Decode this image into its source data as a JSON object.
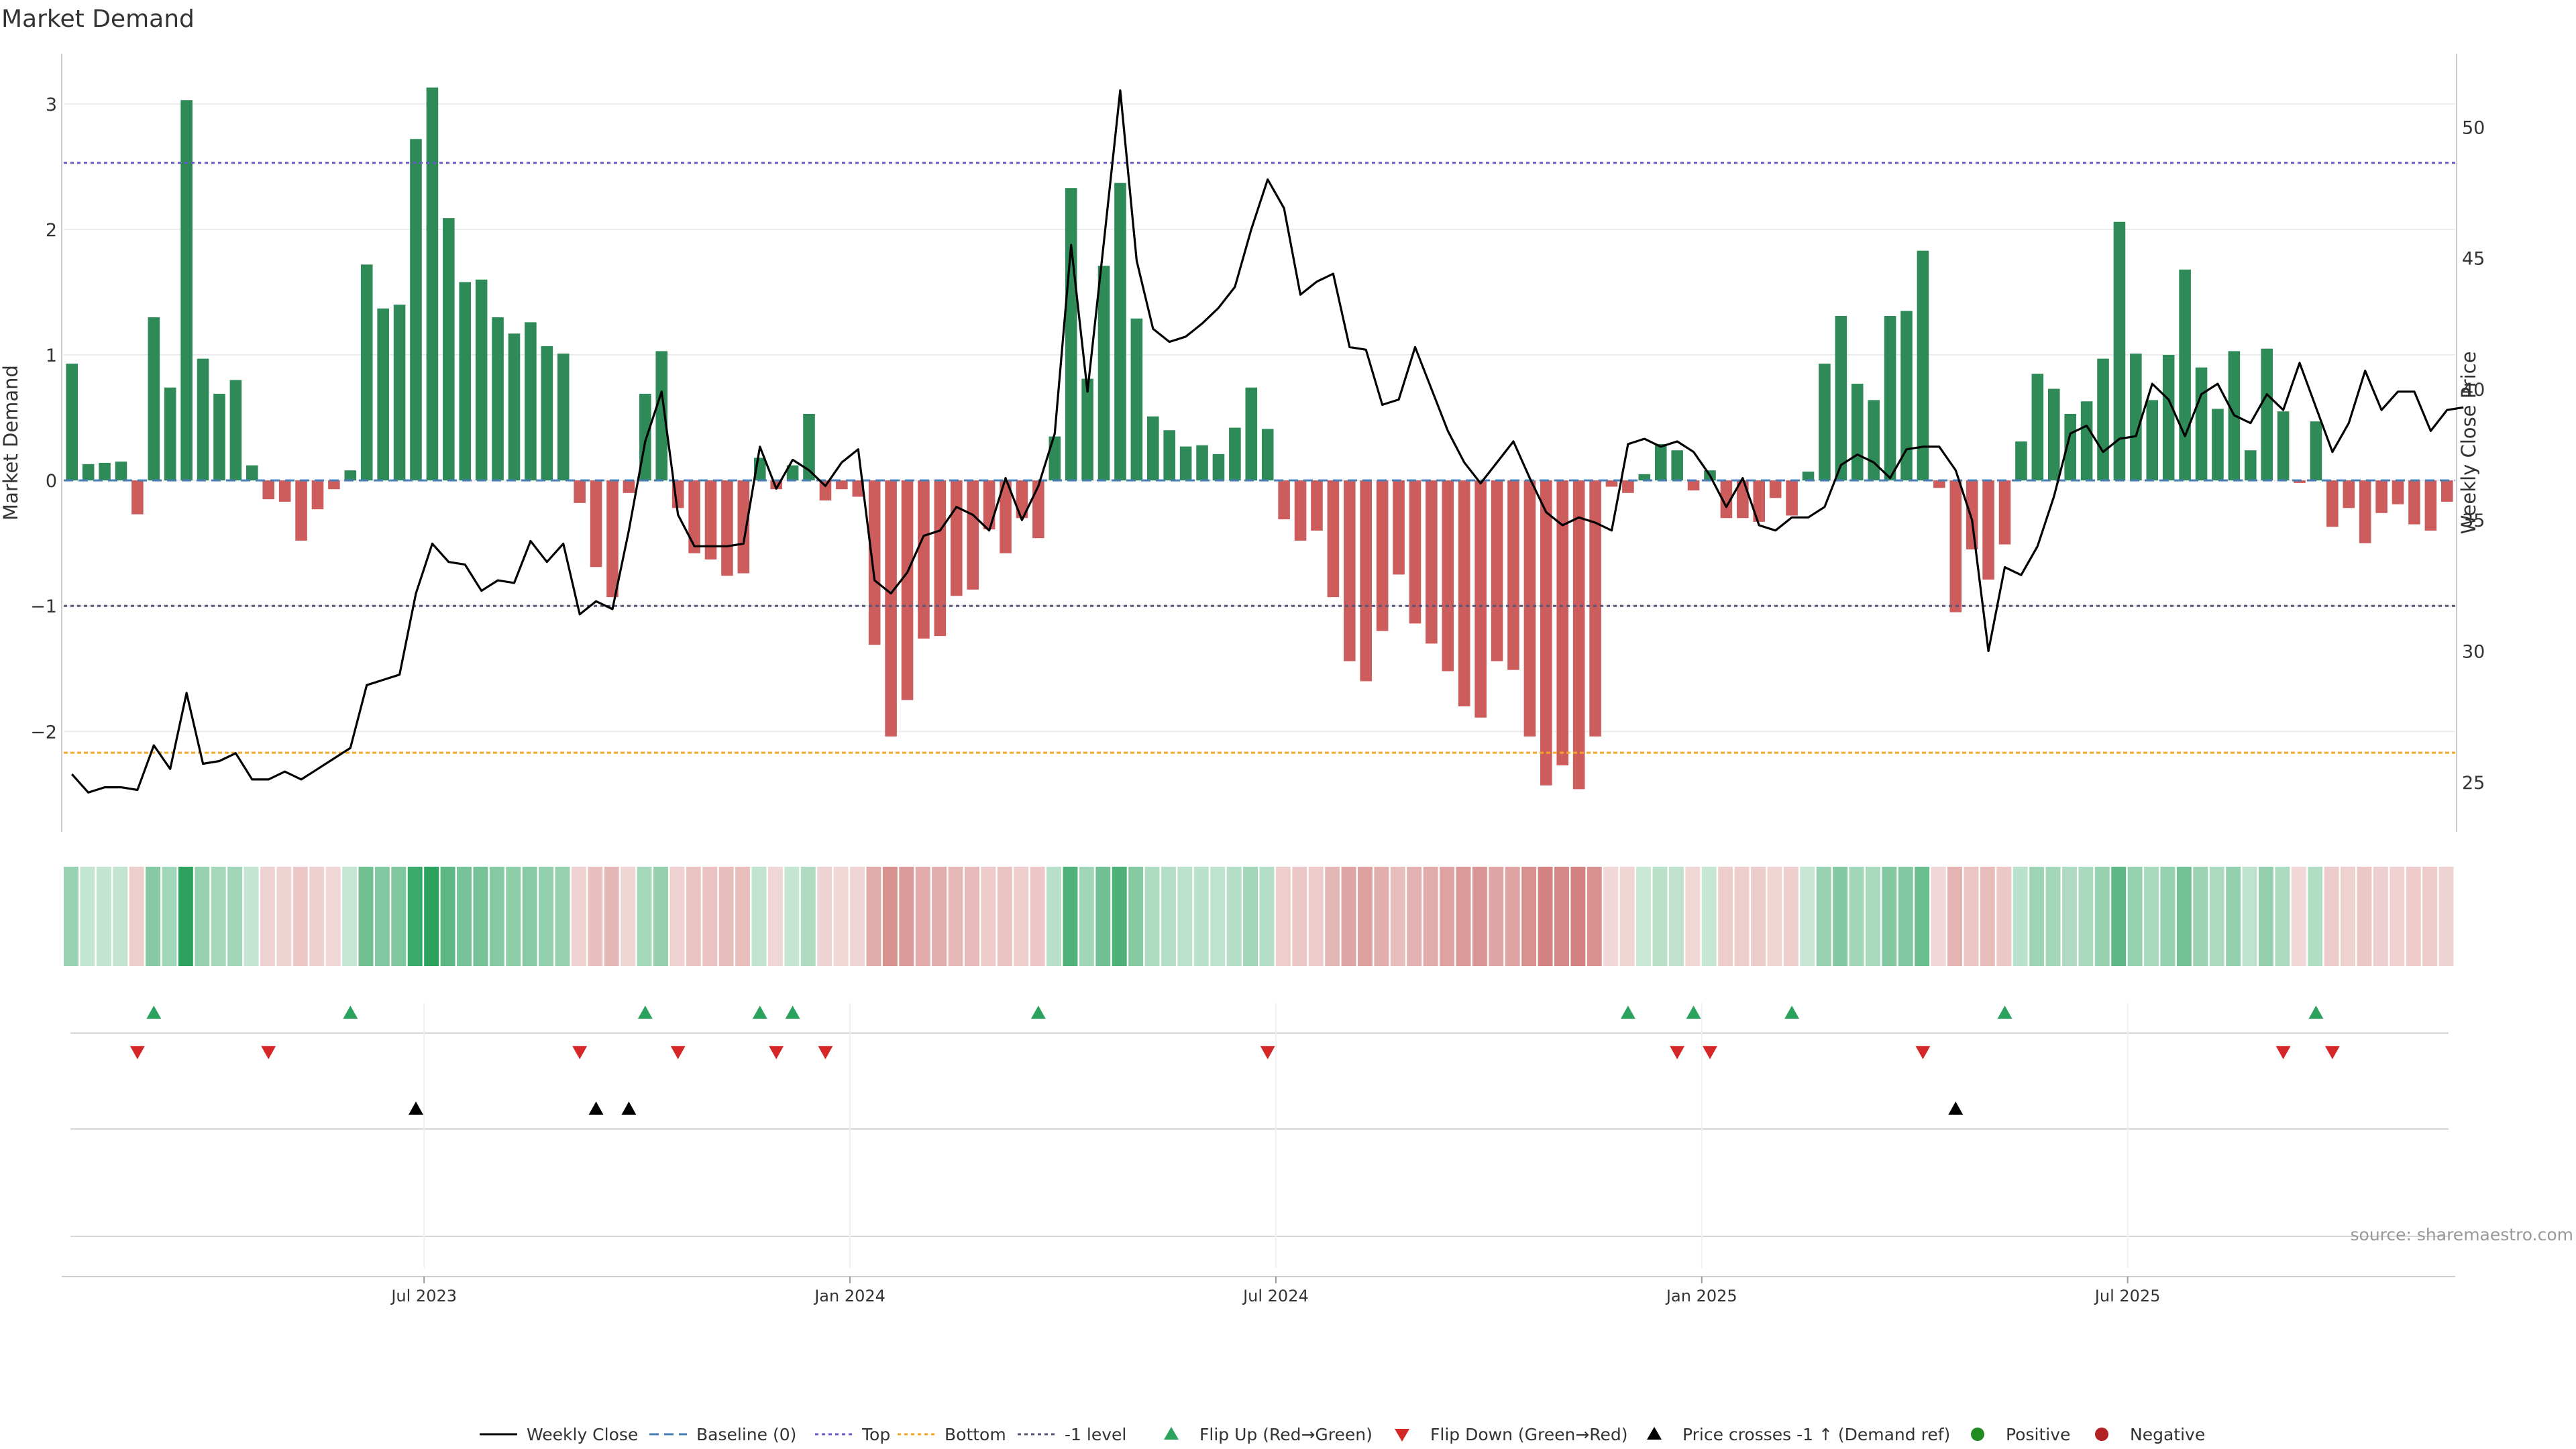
{
  "title": "Market Demand",
  "source": "source: sharemaestro.com",
  "colors": {
    "positive": "#2e8b57",
    "negative": "#cd5c5c",
    "price": "#000000",
    "top_line": "#6a5acd",
    "bottom_line": "#f5a623",
    "minus1_line": "#555577",
    "flip_up": "#2ca25f",
    "flip_down": "#d62728",
    "cross": "#000000"
  },
  "chart_data": {
    "type": "bar",
    "title": "Market Demand",
    "ylabel": "Market Demand",
    "y2label": "Weekly Close Price",
    "ylim": [
      -2.8,
      3.4
    ],
    "y2lim": [
      23.1,
      52.8
    ],
    "yticks": [
      -2,
      -1,
      0,
      1,
      2,
      3
    ],
    "yticklabels": [
      "−2",
      "−1",
      "0",
      "1",
      "2",
      "3"
    ],
    "y2ticks": [
      25,
      30,
      35,
      40,
      45,
      50
    ],
    "xticklabels": [
      "Jul 2023",
      "Jan 2024",
      "Jul 2024",
      "Jan 2025",
      "Jul 2025"
    ],
    "xtick_weeks": [
      22,
      48,
      74,
      100,
      126
    ],
    "reference_lines": {
      "baseline": 0,
      "top": 2.53,
      "bottom": -2.17,
      "minus1": -1.0
    },
    "demand": [
      0.93,
      0.13,
      0.14,
      0.15,
      -0.27,
      1.3,
      0.74,
      3.03,
      0.97,
      0.69,
      0.8,
      0.12,
      -0.15,
      -0.17,
      -0.48,
      -0.23,
      -0.07,
      0.08,
      1.72,
      1.37,
      1.4,
      2.72,
      3.13,
      2.09,
      1.58,
      1.6,
      1.3,
      1.17,
      1.26,
      1.07,
      1.01,
      -0.18,
      -0.69,
      -0.93,
      -0.1,
      0.69,
      1.03,
      -0.22,
      -0.58,
      -0.63,
      -0.76,
      -0.74,
      0.18,
      -0.07,
      0.12,
      0.53,
      -0.16,
      -0.07,
      -0.13,
      -1.31,
      -2.04,
      -1.75,
      -1.26,
      -1.24,
      -0.92,
      -0.87,
      -0.39,
      -0.58,
      -0.3,
      -0.46,
      0.35,
      2.33,
      0.81,
      1.71,
      2.37,
      1.29,
      0.51,
      0.4,
      0.27,
      0.28,
      0.21,
      0.42,
      0.74,
      0.41,
      -0.31,
      -0.48,
      -0.4,
      -0.93,
      -1.44,
      -1.6,
      -1.2,
      -0.75,
      -1.14,
      -1.3,
      -1.52,
      -1.8,
      -1.89,
      -1.44,
      -1.51,
      -2.04,
      -2.43,
      -2.27,
      -2.46,
      -2.04,
      -0.05,
      -0.1,
      0.05,
      0.29,
      0.24,
      -0.08,
      0.08,
      -0.3,
      -0.3,
      -0.33,
      -0.14,
      -0.28,
      0.07,
      0.93,
      1.31,
      0.77,
      0.64,
      1.31,
      1.35,
      1.83,
      -0.06,
      -1.05,
      -0.55,
      -0.79,
      -0.51,
      0.31,
      0.85,
      0.73,
      0.53,
      0.63,
      0.97,
      2.06,
      1.01,
      0.64,
      1.0,
      1.68,
      0.9,
      0.57,
      1.03,
      0.24,
      1.05,
      0.55,
      -0.02,
      0.47,
      -0.37,
      -0.22,
      -0.5,
      -0.26,
      -0.19,
      -0.35,
      -0.4,
      -0.17
    ],
    "weekly_close": [
      25.3,
      24.6,
      24.8,
      24.8,
      24.7,
      26.4,
      25.5,
      28.4,
      25.7,
      25.8,
      26.1,
      25.1,
      25.1,
      25.4,
      25.1,
      25.5,
      25.9,
      26.3,
      28.7,
      28.9,
      29.1,
      32.2,
      34.1,
      33.4,
      33.3,
      32.3,
      32.7,
      32.6,
      34.2,
      33.4,
      34.1,
      31.4,
      31.9,
      31.6,
      34.6,
      38.0,
      39.9,
      35.2,
      34.0,
      34.0,
      34.0,
      34.1,
      37.8,
      36.2,
      37.3,
      36.9,
      36.3,
      37.2,
      37.7,
      32.7,
      32.2,
      33.0,
      34.4,
      34.6,
      35.5,
      35.2,
      34.6,
      36.6,
      35.0,
      36.3,
      38.3,
      45.5,
      39.9,
      45.6,
      51.4,
      44.9,
      42.3,
      41.8,
      42.0,
      42.5,
      43.1,
      43.9,
      46.1,
      48.0,
      46.9,
      43.6,
      44.1,
      44.4,
      41.6,
      41.5,
      39.4,
      39.6,
      41.6,
      40.0,
      38.4,
      37.2,
      36.4,
      37.2,
      38.0,
      36.6,
      35.3,
      34.8,
      35.1,
      34.9,
      34.6,
      37.9,
      38.1,
      37.8,
      38.0,
      37.6,
      36.7,
      35.5,
      36.6,
      34.8,
      34.6,
      35.1,
      35.1,
      35.5,
      37.1,
      37.5,
      37.2,
      36.6,
      37.7,
      37.8,
      37.8,
      36.9,
      35.0,
      30.0,
      33.2,
      32.9,
      34.0,
      35.9,
      38.3,
      38.6,
      37.6,
      38.1,
      38.2,
      40.2,
      39.6,
      38.2,
      39.8,
      40.2,
      39.0,
      38.7,
      39.8,
      39.2,
      41.0,
      39.3,
      37.6,
      38.7,
      40.7,
      39.2,
      39.9,
      39.9,
      38.4,
      39.2,
      39.3
    ],
    "flip_up_weeks": [
      5,
      17,
      35,
      42,
      44,
      59,
      95,
      99,
      105,
      118,
      137
    ],
    "flip_down_weeks": [
      4,
      12,
      31,
      37,
      43,
      46,
      73,
      98,
      100,
      113,
      135,
      138
    ],
    "price_cross_weeks": [
      21,
      32,
      34,
      115
    ],
    "legend_position": "bottom-center",
    "legend": [
      "Weekly Close",
      "Baseline (0)",
      "Top",
      "Bottom",
      "-1 level",
      "Flip Up (Red→Green)",
      "Flip Down (Green→Red)",
      "Price crosses -1 ↑ (Demand ref)",
      "Positive",
      "Negative"
    ]
  }
}
